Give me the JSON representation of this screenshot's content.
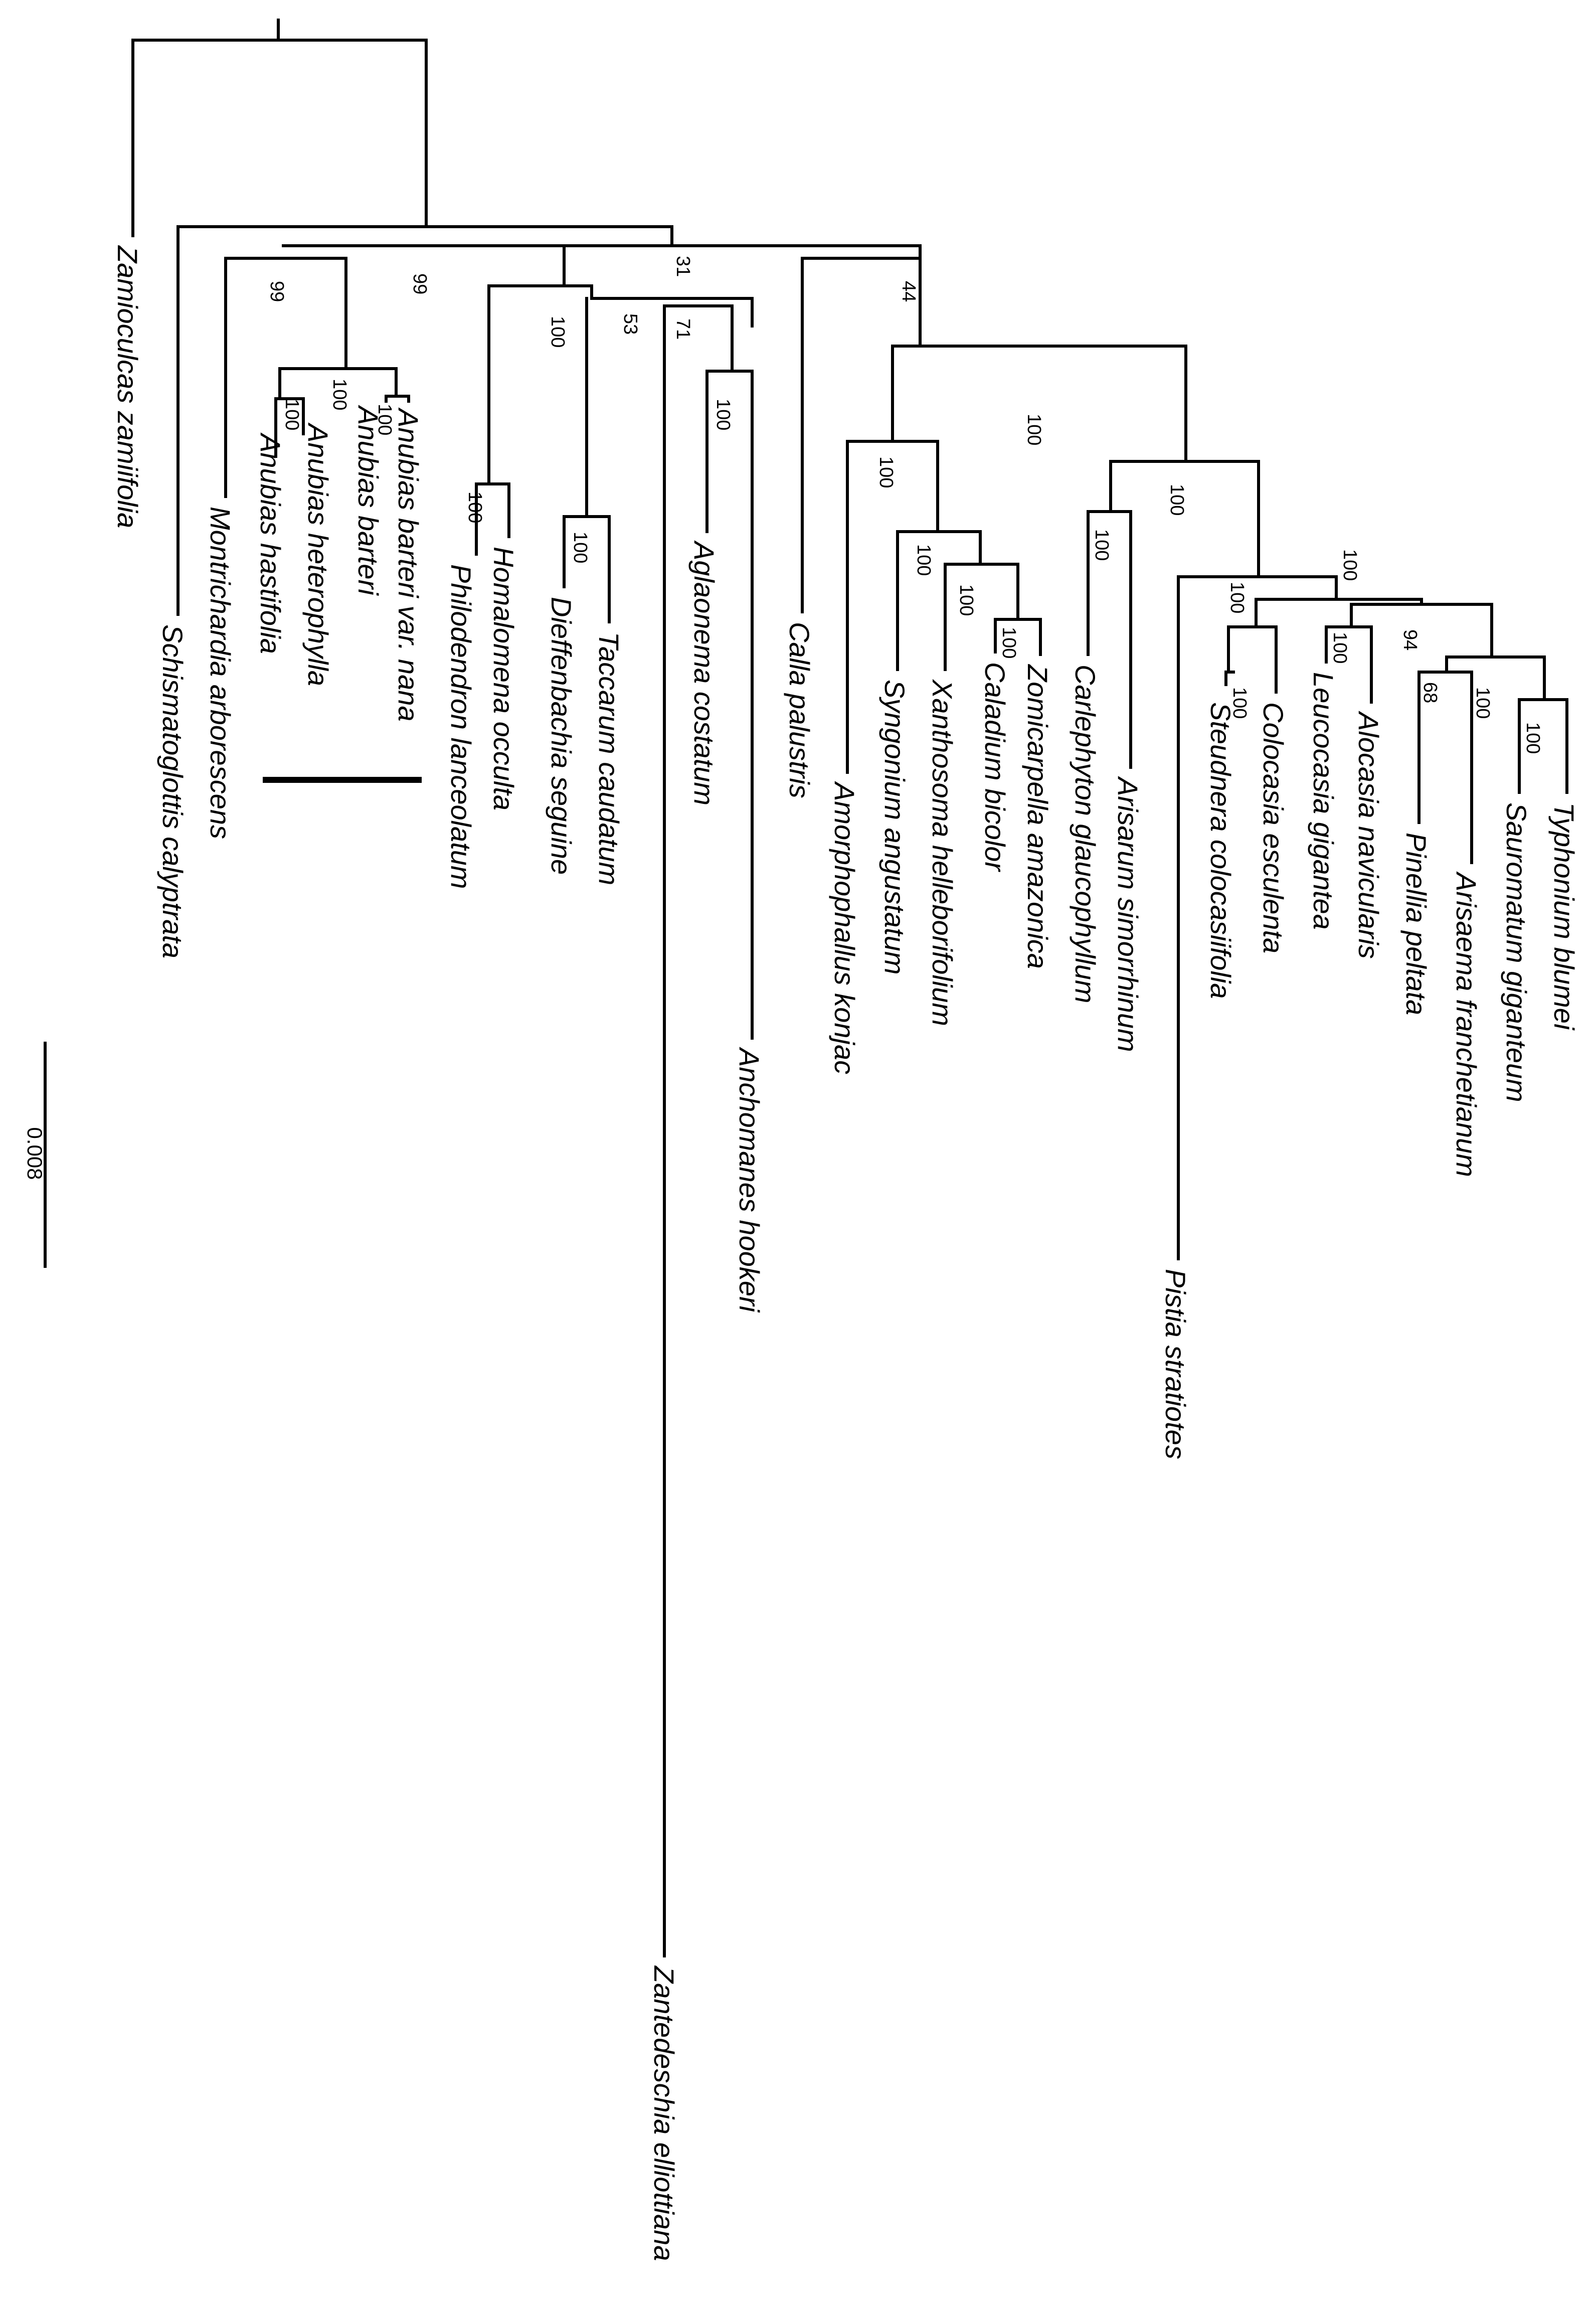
{
  "figure": {
    "type": "phylogenetic_tree",
    "orientation": "rotated 90 degrees clockwise (tips point down)",
    "scale_bar_label": "0.008"
  },
  "taxa": {
    "zamioculcas": "Zamioculcas zamiifolia",
    "schismatoglottis": "Schismatoglottis calyptrata",
    "montrichardia": "Montrichardia arborescens",
    "anubias_hastifolia": "Anubias hastifolia",
    "anubias_heterophylla": "Anubias heterophylla",
    "anubias_barteri": "Anubias barteri",
    "anubias_nana": "Anubias barteri var. nana",
    "philodendron": "Philodendron lanceolatum",
    "homalomena": "Homalomena occulta",
    "dieffenbachia": "Dieffenbachia seguine",
    "taccarum": "Taccarum caudatum",
    "zantedeschia": "Zantedeschia elliottiana",
    "aglaonema": "Aglaonema costatum",
    "anchomanes": "Anchomanes hookeri",
    "calla": "Calla palustris",
    "amorphophallus": "Amorphophallus konjac",
    "syngonium": "Syngonium angustatum",
    "xanthosoma": "Xanthosoma helleborifolium",
    "caladium": "Caladium bicolor",
    "zomicarpella": "Zomicarpella amazonica",
    "carlephyton": "Carlephyton glaucophyllum",
    "arisarum": "Arisarum simorrhinum",
    "pistia": "Pistia stratiotes",
    "steudnera": "Steudnera colocasiifolia",
    "colocasia": "Colocasia esculenta",
    "leucocasia": "Leucocasia gigantea",
    "alocasia": "Alocasia navicularis",
    "pinellia": "Pinellia peltata",
    "arisaema": "Arisaema franchetianum",
    "sauromatum": "Sauromatum giganteum",
    "typhonium": "Typhonium blumei"
  },
  "bootstrap": {
    "b_anubias_clade": "99",
    "b_anubias_inner": "100",
    "b_anubias_nana": "100",
    "b_anubias_hast_het": "100",
    "b_montr_grp": "99",
    "b_philo_grp": "100",
    "b_philo_homal": "100",
    "b_dief_tacc": "100",
    "b_big_clade": "31",
    "b_zant_grp": "53",
    "b_agla_grp": "71",
    "b_agla_anch": "100",
    "b_calla_grp": "44",
    "b_aroid_core": "100",
    "b_amorph_grp": "100",
    "b_syng_grp": "100",
    "b_xanth_grp": "100",
    "b_cal_zom": "100",
    "b_carl_aris": "100",
    "b_pistia_grp": "100",
    "b_rest": "100",
    "b_steud_colo": "100",
    "b_colo_pair": "100",
    "b_leuc_aloc": "100",
    "b_pin_grp": "94",
    "b_pin_aris": "68",
    "b_saur_typh": "100",
    "b_typh_pair": "100"
  }
}
